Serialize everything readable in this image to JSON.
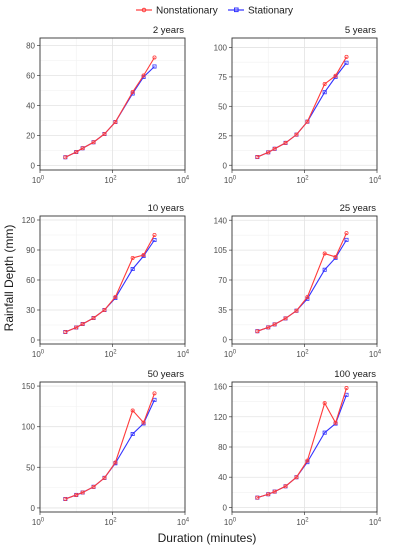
{
  "xlabel": "Duration (minutes)",
  "ylabel": "Rainfall Depth (mm)",
  "legend": {
    "position": "top-center",
    "entries": [
      {
        "name": "Nonstationary",
        "color": "#ff3b3b"
      },
      {
        "name": "Stationary",
        "color": "#3333ff"
      }
    ]
  },
  "chart_data": [
    {
      "type": "line",
      "title": "2 years",
      "x": [
        5,
        10,
        15,
        30,
        60,
        120,
        360,
        720,
        1440
      ],
      "xscale": "log",
      "xlim": [
        1,
        10000
      ],
      "xticks": [
        "10^0",
        "10^2",
        "10^4"
      ],
      "ylim": [
        -3,
        85
      ],
      "yticks": [
        0,
        20,
        40,
        60,
        80
      ],
      "grid": true,
      "series": [
        {
          "name": "Nonstationary",
          "values": [
            5.5,
            9,
            11.5,
            15.5,
            21,
            29,
            49,
            60,
            72
          ]
        },
        {
          "name": "Stationary",
          "values": [
            5.5,
            9,
            11.5,
            15.5,
            21,
            29,
            48,
            59,
            66
          ]
        }
      ]
    },
    {
      "type": "line",
      "title": "5 years",
      "x": [
        5,
        10,
        15,
        30,
        60,
        120,
        360,
        720,
        1440
      ],
      "xscale": "log",
      "xlim": [
        1,
        10000
      ],
      "xticks": [
        "10^0",
        "10^2",
        "10^4"
      ],
      "ylim": [
        -4,
        108
      ],
      "yticks": [
        0,
        25,
        50,
        75,
        100
      ],
      "grid": true,
      "series": [
        {
          "name": "Nonstationary",
          "values": [
            7,
            11,
            14,
            19,
            26,
            37,
            69,
            76,
            92
          ]
        },
        {
          "name": "Stationary",
          "values": [
            7,
            11,
            14,
            19,
            26,
            37,
            62,
            75,
            87
          ]
        }
      ]
    },
    {
      "type": "line",
      "title": "10 years",
      "x": [
        5,
        10,
        15,
        30,
        60,
        120,
        360,
        720,
        1440
      ],
      "xscale": "log",
      "xlim": [
        1,
        10000
      ],
      "xticks": [
        "10^0",
        "10^2",
        "10^4"
      ],
      "ylim": [
        -4,
        124
      ],
      "yticks": [
        0,
        30,
        60,
        90,
        120
      ],
      "grid": true,
      "series": [
        {
          "name": "Nonstationary",
          "values": [
            8,
            12.5,
            16,
            22,
            30,
            43,
            82,
            85,
            105
          ]
        },
        {
          "name": "Stationary",
          "values": [
            8,
            12.5,
            16,
            22,
            30,
            42,
            71,
            84,
            100
          ]
        }
      ]
    },
    {
      "type": "line",
      "title": "25 years",
      "x": [
        5,
        10,
        15,
        30,
        60,
        120,
        360,
        720,
        1440
      ],
      "xscale": "log",
      "xlim": [
        1,
        10000
      ],
      "xticks": [
        "10^0",
        "10^2",
        "10^4"
      ],
      "ylim": [
        -5,
        145
      ],
      "yticks": [
        0,
        35,
        70,
        105,
        140
      ],
      "grid": true,
      "series": [
        {
          "name": "Nonstationary",
          "values": [
            10,
            14.5,
            18,
            25,
            34,
            50,
            101,
            97,
            125
          ]
        },
        {
          "name": "Stationary",
          "values": [
            10,
            14.5,
            18,
            25,
            34,
            48,
            82,
            96,
            117
          ]
        }
      ]
    },
    {
      "type": "line",
      "title": "50 years",
      "x": [
        5,
        10,
        15,
        30,
        60,
        120,
        360,
        720,
        1440
      ],
      "xscale": "log",
      "xlim": [
        1,
        10000
      ],
      "xticks": [
        "10^0",
        "10^2",
        "10^4"
      ],
      "ylim": [
        -5,
        155
      ],
      "yticks": [
        0,
        50,
        100,
        150
      ],
      "grid": true,
      "series": [
        {
          "name": "Nonstationary",
          "values": [
            11,
            16,
            19,
            26,
            37,
            56,
            120,
            105,
            141
          ]
        },
        {
          "name": "Stationary",
          "values": [
            11,
            16,
            19,
            26,
            37,
            55,
            91,
            104,
            133
          ]
        }
      ]
    },
    {
      "type": "line",
      "title": "100 years",
      "x": [
        5,
        10,
        15,
        30,
        60,
        120,
        360,
        720,
        1440
      ],
      "xscale": "log",
      "xlim": [
        1,
        10000
      ],
      "xticks": [
        "10^0",
        "10^2",
        "10^4"
      ],
      "ylim": [
        -6,
        166
      ],
      "yticks": [
        0,
        40,
        80,
        120,
        160
      ],
      "grid": true,
      "series": [
        {
          "name": "Nonstationary",
          "values": [
            13,
            17.5,
            21,
            28,
            40,
            62,
            138,
            112,
            158
          ]
        },
        {
          "name": "Stationary",
          "values": [
            13,
            17.5,
            21,
            28,
            40,
            60,
            99,
            111,
            149
          ]
        }
      ]
    }
  ]
}
